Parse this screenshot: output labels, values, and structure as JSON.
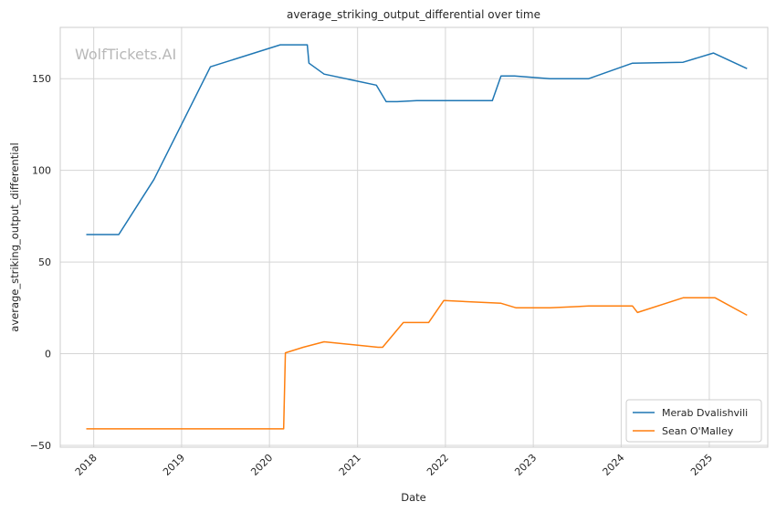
{
  "chart_data": {
    "type": "line",
    "title": "average_striking_output_differential over time",
    "xlabel": "Date",
    "ylabel": "average_striking_output_differential",
    "watermark": "WolfTickets.AI",
    "xlim": [
      "2017-08-15",
      "2025-09-01"
    ],
    "ylim": [
      -51,
      178
    ],
    "x_ticks": [
      "2018",
      "2019",
      "2020",
      "2021",
      "2022",
      "2023",
      "2024",
      "2025"
    ],
    "y_ticks": [
      "−50",
      "0",
      "50",
      "100",
      "150"
    ],
    "y_tick_values": [
      -50,
      0,
      50,
      100,
      150
    ],
    "grid": true,
    "legend_position": "lower-right",
    "series": [
      {
        "name": "Merab Dvalishvili",
        "color": "#1f77b4",
        "points": [
          [
            "2017-12-01",
            65
          ],
          [
            "2018-04-15",
            65
          ],
          [
            "2018-09-08",
            95
          ],
          [
            "2019-05-01",
            156.5
          ],
          [
            "2020-02-15",
            168.5
          ],
          [
            "2020-06-06",
            168.5
          ],
          [
            "2020-06-13",
            158.5
          ],
          [
            "2020-08-15",
            152.5
          ],
          [
            "2021-03-20",
            146.5
          ],
          [
            "2021-04-30",
            137.5
          ],
          [
            "2021-06-15",
            137.5
          ],
          [
            "2021-09-04",
            138
          ],
          [
            "2022-07-15",
            138
          ],
          [
            "2022-08-20",
            151.5
          ],
          [
            "2022-10-15",
            151.5
          ],
          [
            "2023-03-11",
            150
          ],
          [
            "2023-08-19",
            150
          ],
          [
            "2024-02-17",
            158.5
          ],
          [
            "2024-09-14",
            159
          ],
          [
            "2025-01-18",
            164
          ],
          [
            "2025-06-07",
            155.5
          ]
        ]
      },
      {
        "name": "Sean O'Malley",
        "color": "#ff7f0e",
        "points": [
          [
            "2017-12-01",
            -41
          ],
          [
            "2020-02-29",
            -41
          ],
          [
            "2020-03-07",
            0.5
          ],
          [
            "2020-05-20",
            3.5
          ],
          [
            "2020-08-15",
            6.5
          ],
          [
            "2021-03-27",
            3.5
          ],
          [
            "2021-04-15",
            3.5
          ],
          [
            "2021-07-10",
            17
          ],
          [
            "2021-10-23",
            17
          ],
          [
            "2021-12-25",
            29
          ],
          [
            "2022-08-20",
            27.5
          ],
          [
            "2022-10-22",
            25
          ],
          [
            "2023-03-11",
            25
          ],
          [
            "2023-08-19",
            26
          ],
          [
            "2024-02-17",
            26
          ],
          [
            "2024-03-09",
            22.5
          ],
          [
            "2024-09-14",
            30.5
          ],
          [
            "2025-01-25",
            30.5
          ],
          [
            "2025-06-07",
            21
          ]
        ]
      }
    ]
  }
}
